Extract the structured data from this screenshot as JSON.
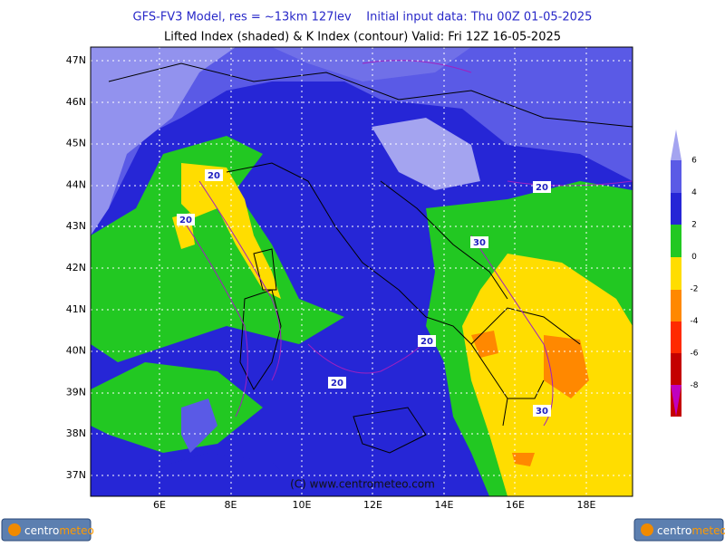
{
  "header": {
    "line1": "GFS-FV3 Model, res = ~13km 127lev    Initial input data: Thu 00Z 01-05-2025",
    "line2": "Lifted Index (shaded) & K Index (contour) Valid: Fri 12Z 16-05-2025"
  },
  "map": {
    "lat_labels": [
      "47N",
      "46N",
      "45N",
      "44N",
      "43N",
      "42N",
      "41N",
      "40N",
      "39N",
      "38N",
      "37N"
    ],
    "lon_labels": [
      "6E",
      "8E",
      "10E",
      "12E",
      "14E",
      "16E",
      "18E"
    ],
    "contour_labels": [
      "20",
      "20",
      "20",
      "20",
      "20",
      "30",
      "30"
    ],
    "copyright": "(C) www.centrometeo.com"
  },
  "colorbar": {
    "labels": [
      "6",
      "4",
      "2",
      "0",
      "-2",
      "-4",
      "-6",
      "-8"
    ]
  },
  "logo": {
    "left": [
      "centro",
      "meteo"
    ],
    "right": [
      "centro",
      "meteo"
    ]
  }
}
